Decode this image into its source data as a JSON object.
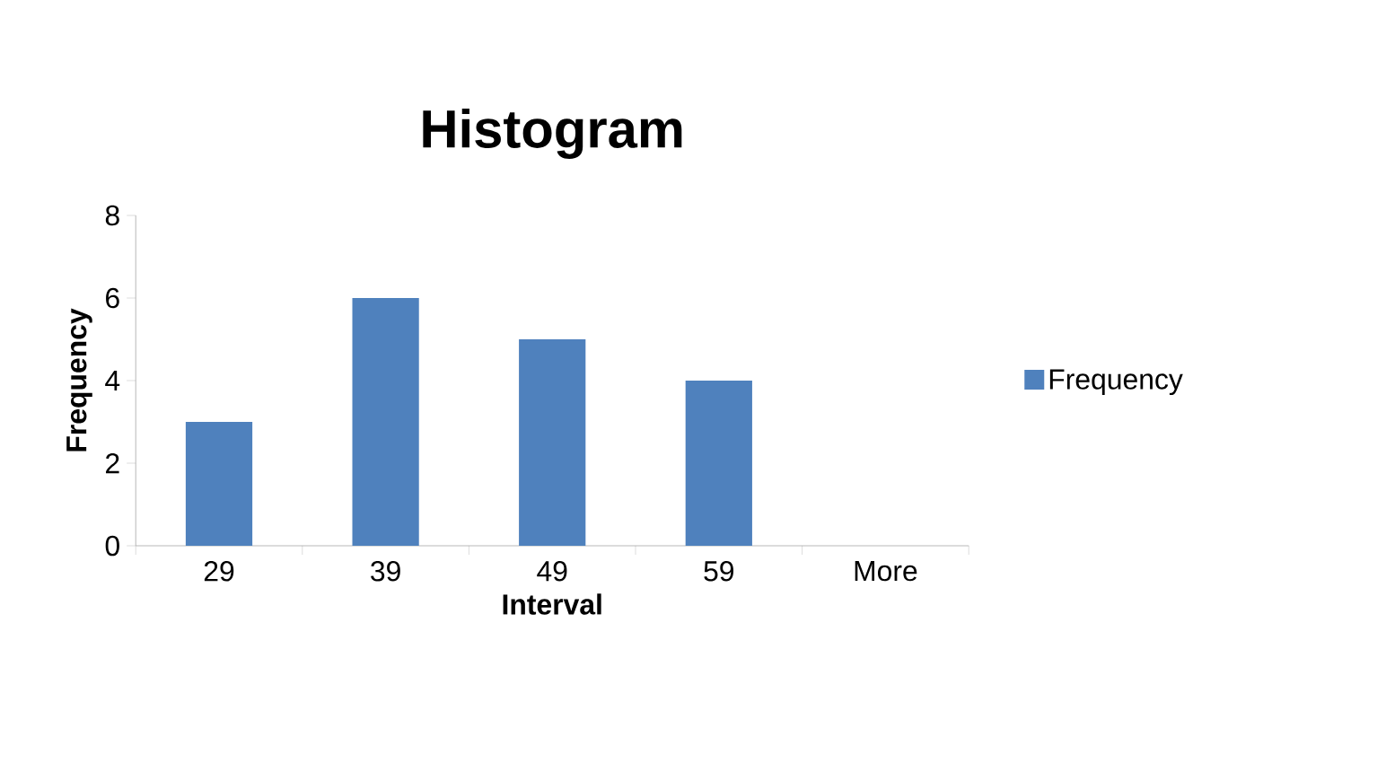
{
  "chart_data": {
    "type": "bar",
    "title": "Histogram",
    "xlabel": "Interval",
    "ylabel": "Frequency",
    "categories": [
      "29",
      "39",
      "49",
      "59",
      "More"
    ],
    "series": [
      {
        "name": "Frequency",
        "color": "#4f81bd",
        "values": [
          3,
          6,
          5,
          4,
          0
        ]
      }
    ],
    "ylim": [
      0,
      8
    ],
    "yticks": [
      0,
      2,
      4,
      6,
      8
    ],
    "legend": "right"
  }
}
